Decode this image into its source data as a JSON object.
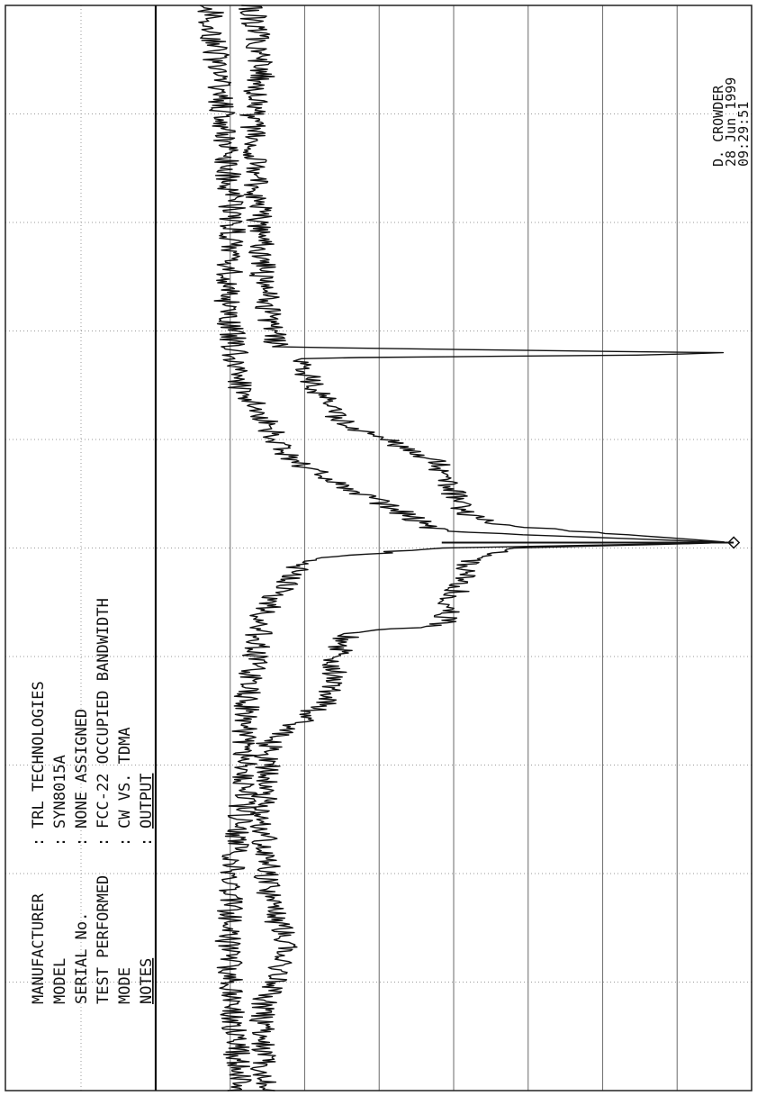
{
  "header": {
    "fields": [
      {
        "label": "MANUFACTURER",
        "value": "TRL TECHNOLOGIES"
      },
      {
        "label": "MODEL",
        "value": "SYN8015A"
      },
      {
        "label": "SERIAL No.",
        "value": "NONE ASSIGNED"
      },
      {
        "label": "TEST PERFORMED",
        "value": "FCC-22 OCCUPIED BANDWIDTH"
      },
      {
        "label": "MODE",
        "value": "CW VS. TDMA"
      },
      {
        "label": "NOTES",
        "value": "OUTPUT"
      }
    ]
  },
  "stamp": {
    "operator": "D. CROWDER",
    "date": "28 Jun 1999",
    "time": "09:29:51"
  },
  "chart_data": {
    "type": "line",
    "title": "",
    "xlabel": "",
    "ylabel": "",
    "grid": true,
    "rotated": true,
    "xlim": [
      0,
      10
    ],
    "ylim": [
      0,
      10
    ],
    "series": [
      {
        "name": "",
        "x": [
          0,
          0.8,
          1.3,
          1.8,
          2.5,
          3.2,
          3.6,
          3.9,
          4.2,
          4.3,
          4.9,
          5.0,
          5.05,
          5.2,
          5.3,
          5.8,
          6.1,
          6.2,
          6.4,
          6.75,
          6.78,
          6.8,
          6.85,
          7.5,
          8.3,
          9.0,
          9.4,
          10
        ],
        "y": [
          1.8,
          1.8,
          2.2,
          1.9,
          1.8,
          1.9,
          2.9,
          3.0,
          3.2,
          4.8,
          5.3,
          6.0,
          9.7,
          6.0,
          5.2,
          4.7,
          3.4,
          3.0,
          2.8,
          2.3,
          8.4,
          9.3,
          2.0,
          1.8,
          1.7,
          1.6,
          1.8,
          1.6
        ]
      },
      {
        "name": "",
        "x": [
          0,
          0.8,
          1.3,
          2.0,
          2.8,
          3.5,
          4.4,
          4.9,
          5.0,
          5.05,
          5.15,
          5.8,
          6.5,
          7.3,
          8.0,
          8.6,
          9.1,
          9.6,
          10
        ],
        "y": [
          1.4,
          1.3,
          1.2,
          1.3,
          1.5,
          1.5,
          1.8,
          2.5,
          4.8,
          9.7,
          4.8,
          2.3,
          1.4,
          1.2,
          1.3,
          1.2,
          1.1,
          1.0,
          0.9
        ]
      }
    ],
    "marker": {
      "x": 5.05,
      "y": 9.7
    }
  }
}
